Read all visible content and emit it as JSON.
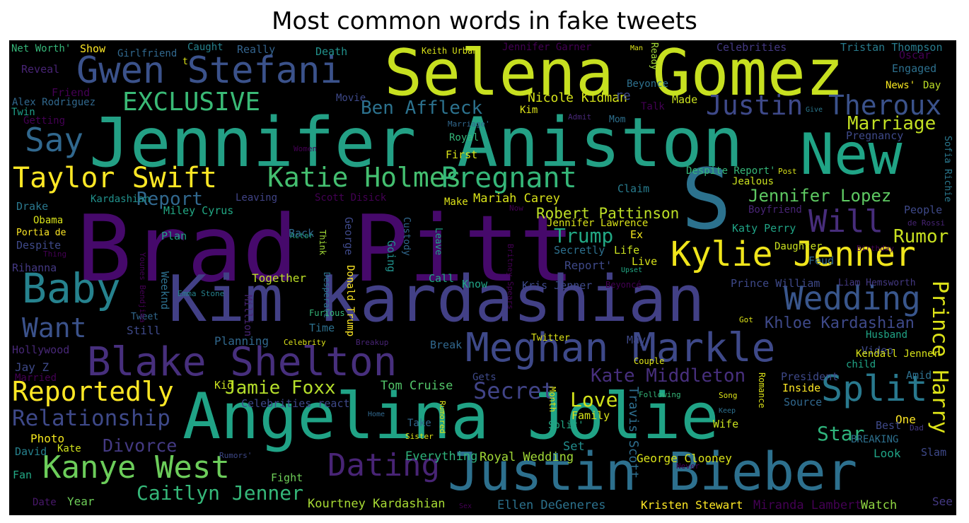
{
  "title": "Most common words in fake tweets",
  "colors": {
    "background": "#000000"
  },
  "words": [
    {
      "text": "Brad Pitt",
      "color": "#46096b"
    },
    {
      "text": "Jennifer Aniston",
      "color": "#23a085"
    },
    {
      "text": "Selena Gomez",
      "color": "#c7e020"
    },
    {
      "text": "Kim Kardashian",
      "color": "#424086"
    },
    {
      "text": "Angelina Jolie",
      "color": "#20a386"
    },
    {
      "text": "Justin Bieber",
      "color": "#2d708e"
    },
    {
      "text": "Meghan Markle",
      "color": "#3e4989"
    },
    {
      "text": "Gwen Stefani",
      "color": "#3b528b"
    },
    {
      "text": "Blake Shelton",
      "color": "#472f7d"
    },
    {
      "text": "New",
      "color": "#20a486"
    },
    {
      "text": "S",
      "color": "#2c728e"
    },
    {
      "text": "Kylie Jenner",
      "color": "#f0e51b"
    },
    {
      "text": "Katie Holmes",
      "color": "#44bf70"
    },
    {
      "text": "Pregnant",
      "color": "#35b779"
    },
    {
      "text": "Taylor Swift",
      "color": "#fde725"
    },
    {
      "text": "Baby",
      "color": "#26828e"
    },
    {
      "text": "Kanye West",
      "color": "#6ccd5a"
    },
    {
      "text": "Wedding",
      "color": "#39568c"
    },
    {
      "text": "Justin",
      "color": "#3e4989"
    },
    {
      "text": "Theroux",
      "color": "#3b528b"
    },
    {
      "text": "Split",
      "color": "#29798e"
    },
    {
      "text": "Dating",
      "color": "#482475"
    },
    {
      "text": "Reportedly",
      "color": "#fde725"
    },
    {
      "text": "Say",
      "color": "#31688e"
    },
    {
      "text": "Want",
      "color": "#3b528b"
    },
    {
      "text": "Will",
      "color": "#472d7b"
    },
    {
      "text": "EXCLUSIVE",
      "color": "#3aba76"
    },
    {
      "text": "Relationship",
      "color": "#3e4989"
    },
    {
      "text": "Ben Affleck",
      "color": "#2c728e"
    },
    {
      "text": "Jamie Foxx",
      "color": "#b5de2b"
    },
    {
      "text": "Caitlyn Jenner",
      "color": "#35b779"
    },
    {
      "text": "Secret",
      "color": "#414487"
    },
    {
      "text": "Kate Middleton",
      "color": "#472f7d"
    },
    {
      "text": "Jennifer Lopez",
      "color": "#5ec962"
    },
    {
      "text": "Prince Harry",
      "color": "#dde318"
    },
    {
      "text": "Divorce",
      "color": "#443a83"
    },
    {
      "text": "Trump",
      "color": "#22a884"
    },
    {
      "text": "Love",
      "color": "#d2e21b"
    },
    {
      "text": "Robert Pattinson",
      "color": "#bddf26"
    },
    {
      "text": "Marriage",
      "color": "#c2df23"
    },
    {
      "text": "Rumor",
      "color": "#c8e020"
    },
    {
      "text": "Star",
      "color": "#2fb47c"
    },
    {
      "text": "Khloe Kardashian",
      "color": "#3e4989"
    },
    {
      "text": "Report",
      "color": "#31688e"
    },
    {
      "text": "Mariah Carey",
      "color": "#d8e219"
    },
    {
      "text": "Nicole Kidman",
      "color": "#d5e21a"
    },
    {
      "text": "Tom Cruise",
      "color": "#52c569"
    },
    {
      "text": "Kourtney Kardashian",
      "color": "#a8db34"
    },
    {
      "text": "Kristen Stewart",
      "color": "#fde725"
    },
    {
      "text": "Ellen DeGeneres",
      "color": "#2c728e"
    },
    {
      "text": "Miranda Lambert",
      "color": "#440154"
    },
    {
      "text": "Watch",
      "color": "#90d743"
    },
    {
      "text": "Travis Scott",
      "color": "#2e6e8e"
    },
    {
      "text": "Royal Wedding",
      "color": "#a2da37"
    },
    {
      "text": "Everything",
      "color": "#2fb47c"
    },
    {
      "text": "George Clooney",
      "color": "#dae319"
    },
    {
      "text": "Set",
      "color": "#228d8d"
    },
    {
      "text": "Fight",
      "color": "#6ece58"
    },
    {
      "text": "Year",
      "color": "#6ece58"
    },
    {
      "text": "Date",
      "color": "#48186a"
    },
    {
      "text": "Fan",
      "color": "#22a884"
    },
    {
      "text": "David",
      "color": "#26828e"
    },
    {
      "text": "Kate",
      "color": "#d0e11c"
    },
    {
      "text": "Photo",
      "color": "#f1e51d"
    },
    {
      "text": "Jay Z",
      "color": "#3e4989"
    },
    {
      "text": "Married",
      "color": "#440154"
    },
    {
      "text": "Hollywood",
      "color": "#482878"
    },
    {
      "text": "Still",
      "color": "#3e4989"
    },
    {
      "text": "Tweet",
      "color": "#31688e"
    },
    {
      "text": "Rihanna",
      "color": "#443983"
    },
    {
      "text": "Despite",
      "color": "#3e4989"
    },
    {
      "text": "Portia de",
      "color": "#fde725"
    },
    {
      "text": "Obama",
      "color": "#d8e219"
    },
    {
      "text": "Drake",
      "color": "#2a788e"
    },
    {
      "text": "Kardashian",
      "color": "#21918c"
    },
    {
      "text": "Getting",
      "color": "#440154"
    },
    {
      "text": "Twin",
      "color": "#1f9e89"
    },
    {
      "text": "Alex Rodriguez",
      "color": "#31688e"
    },
    {
      "text": "Friend",
      "color": "#440154"
    },
    {
      "text": "Reveal",
      "color": "#482475"
    },
    {
      "text": "Net Worth'",
      "color": "#35b779"
    },
    {
      "text": "Show",
      "color": "#fde725"
    },
    {
      "text": "Girlfriend",
      "color": "#31688e"
    },
    {
      "text": "Caught",
      "color": "#26828e"
    },
    {
      "text": "Really",
      "color": "#33638d"
    },
    {
      "text": "Death",
      "color": "#21918c"
    },
    {
      "text": "Keith Urban",
      "color": "#d8e219"
    },
    {
      "text": "Jennifer Garner",
      "color": "#440154"
    },
    {
      "text": "Man",
      "color": "#dde318"
    },
    {
      "text": "Ready",
      "color": "#a2da37"
    },
    {
      "text": "Celebrities",
      "color": "#443983"
    },
    {
      "text": "Tristan Thompson",
      "color": "#287c8e"
    },
    {
      "text": "Oscar",
      "color": "#440154"
    },
    {
      "text": "Engaged",
      "color": "#2d708e"
    },
    {
      "text": "News'",
      "color": "#f6e620"
    },
    {
      "text": "Day",
      "color": "#bddf26"
    },
    {
      "text": "Beyonce",
      "color": "#2d708e"
    },
    {
      "text": "Made",
      "color": "#cae11f"
    },
    {
      "text": "Talk",
      "color": "#440154"
    },
    {
      "text": "Give",
      "color": "#2a788e"
    },
    {
      "text": "Pregnancy",
      "color": "#3e4989"
    },
    {
      "text": "Movie",
      "color": "#3e4989"
    },
    {
      "text": "Kim",
      "color": "#dde318"
    },
    {
      "text": "Admit",
      "color": "#482878"
    },
    {
      "text": "Mom",
      "color": "#2d708e"
    },
    {
      "text": "Marriage'",
      "color": "#31688e"
    },
    {
      "text": "Royal",
      "color": "#35b779"
    },
    {
      "text": "First",
      "color": "#dae319"
    },
    {
      "text": "Women",
      "color": "#440154"
    },
    {
      "text": "Despite Report'",
      "color": "#35b779"
    },
    {
      "text": "Post",
      "color": "#d8e219"
    },
    {
      "text": "Jealous",
      "color": "#cae11f"
    },
    {
      "text": "Claim",
      "color": "#287c8e"
    },
    {
      "text": "Scott Disick",
      "color": "#440154"
    },
    {
      "text": "Leaving",
      "color": "#414487"
    },
    {
      "text": "Miley Cyrus",
      "color": "#22a884"
    },
    {
      "text": "Make",
      "color": "#dde318"
    },
    {
      "text": "Now",
      "color": "#440154"
    },
    {
      "text": "Actor",
      "color": "#22a884"
    },
    {
      "text": "Back",
      "color": "#31688e"
    },
    {
      "text": "Think",
      "color": "#a2da37"
    },
    {
      "text": "George",
      "color": "#3e4989"
    },
    {
      "text": "Donald Trump",
      "color": "#fde725"
    },
    {
      "text": "Desperate",
      "color": "#2c728e"
    },
    {
      "text": "Custody",
      "color": "#31688e"
    },
    {
      "text": "Going",
      "color": "#21918c"
    },
    {
      "text": "Leave",
      "color": "#20a486"
    },
    {
      "text": "Plan",
      "color": "#20a486"
    },
    {
      "text": "Together",
      "color": "#bddf26"
    },
    {
      "text": "Call",
      "color": "#22a884"
    },
    {
      "text": "Know",
      "color": "#20a486"
    },
    {
      "text": "Kris Jenner",
      "color": "#3e4989"
    },
    {
      "text": "Beyoncé",
      "color": "#440154"
    },
    {
      "text": "Prince William",
      "color": "#3e4989"
    },
    {
      "text": "Liam Hemsworth",
      "color": "#443983"
    },
    {
      "text": "Sofia Richie",
      "color": "#2a788e"
    },
    {
      "text": "People",
      "color": "#3e4989"
    },
    {
      "text": "de Rossi",
      "color": "#482475"
    },
    {
      "text": "Boyfriend",
      "color": "#482475"
    },
    {
      "text": "Katy Perry",
      "color": "#20a486"
    },
    {
      "text": "Daughter",
      "color": "#cae11f"
    },
    {
      "text": "Birthday",
      "color": "#440154"
    },
    {
      "text": "Feud",
      "color": "#31688e"
    },
    {
      "text": "Got",
      "color": "#dde318"
    },
    {
      "text": "Husband",
      "color": "#20a486"
    },
    {
      "text": "Video",
      "color": "#3e4989"
    },
    {
      "text": "Kendall Jenner",
      "color": "#d8e219"
    },
    {
      "text": "child",
      "color": "#20a486"
    },
    {
      "text": "President",
      "color": "#3e4989"
    },
    {
      "text": "Amid",
      "color": "#2d708e"
    },
    {
      "text": "Inside",
      "color": "#fde725"
    },
    {
      "text": "Source",
      "color": "#31688e"
    },
    {
      "text": "One",
      "color": "#fde725"
    },
    {
      "text": "Best",
      "color": "#3e4989"
    },
    {
      "text": "Dad",
      "color": "#443983"
    },
    {
      "text": "BREAKING",
      "color": "#2d708e"
    },
    {
      "text": "Look",
      "color": "#20a486"
    },
    {
      "text": "Slam",
      "color": "#3e4989"
    },
    {
      "text": "See",
      "color": "#443983"
    },
    {
      "text": "Jennifer Lawrence",
      "color": "#dae319"
    },
    {
      "text": "Ex",
      "color": "#f1e51d"
    },
    {
      "text": "Secretly",
      "color": "#2d708e"
    },
    {
      "text": "Life",
      "color": "#cae11f"
    },
    {
      "text": "Live",
      "color": "#d8e219"
    },
    {
      "text": "Upset",
      "color": "#22a884"
    },
    {
      "text": "Report'",
      "color": "#3e4989"
    },
    {
      "text": "Emma Stone",
      "color": "#26828e"
    },
    {
      "text": "Weeknd",
      "color": "#2d708e"
    },
    {
      "text": "Million",
      "color": "#482475"
    },
    {
      "text": "Younes Bendjima",
      "color": "#440154"
    },
    {
      "text": "Thing",
      "color": "#440154"
    },
    {
      "text": "Britney Spears",
      "color": "#440154"
    },
    {
      "text": "Planning",
      "color": "#31688e"
    },
    {
      "text": "Time",
      "color": "#2d708e"
    },
    {
      "text": "Furious",
      "color": "#35b779"
    },
    {
      "text": "Celebrity",
      "color": "#dde318"
    },
    {
      "text": "Breakup",
      "color": "#482475"
    },
    {
      "text": "Twitter",
      "color": "#dde318"
    },
    {
      "text": "Break",
      "color": "#31688e"
    },
    {
      "text": "May",
      "color": "#3e4989"
    },
    {
      "text": "Couple",
      "color": "#dde318"
    },
    {
      "text": "Gets",
      "color": "#3e4989"
    },
    {
      "text": "Following",
      "color": "#35b779"
    },
    {
      "text": "Song",
      "color": "#dde318"
    },
    {
      "text": "Keep",
      "color": "#2d708e"
    },
    {
      "text": "Romance",
      "color": "#dde318"
    },
    {
      "text": "Wife",
      "color": "#cae11f"
    },
    {
      "text": "Family",
      "color": "#d8e219"
    },
    {
      "text": "Split'",
      "color": "#22a884"
    },
    {
      "text": "Month",
      "color": "#dde318"
    },
    {
      "text": "Kid",
      "color": "#cae11f"
    },
    {
      "text": "Celebrities react",
      "color": "#3e4989"
    },
    {
      "text": "Take",
      "color": "#31688e"
    },
    {
      "text": "Sister",
      "color": "#dde318"
    },
    {
      "text": "Rumored",
      "color": "#dde318"
    },
    {
      "text": "Home",
      "color": "#31688e"
    },
    {
      "text": "Rumors'",
      "color": "#3e4989"
    },
    {
      "text": "Never",
      "color": "#440154"
    },
    {
      "text": "Sex",
      "color": "#440154"
    },
    {
      "text": "t",
      "color": "#dde318"
    },
    {
      "text": "re",
      "color": "#3e4989"
    }
  ]
}
